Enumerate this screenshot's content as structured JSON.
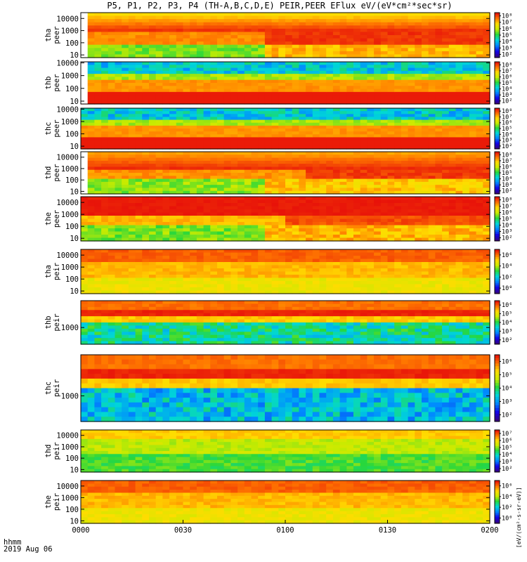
{
  "title": "P5, P1, P2, P3, P4 (TH-A,B,C,D,E) PEIR,PEER EFlux eV/(eV*cm²*sec*sr)",
  "footer": {
    "time_label": "hhmm",
    "date_label": "2019 Aug 06"
  },
  "colorbar_unit": "[eV/(cm²-s-sr-eV)]",
  "chart_data": {
    "type": "heatmap",
    "x": {
      "ticks": [
        "0000",
        "0030",
        "0100",
        "0130",
        "0200"
      ],
      "range": [
        0,
        120
      ],
      "unit": "minutes"
    },
    "panels": [
      {
        "id": "tha-peer",
        "label": [
          "tha",
          "peer"
        ],
        "yscale": "log",
        "ylim": [
          6,
          30000
        ],
        "yticks": [
          "10",
          "100",
          "1000",
          "10000"
        ],
        "yvals": [
          10,
          100,
          1000,
          10000
        ],
        "cb": [
          "10²",
          "10³",
          "10⁴",
          "10⁵",
          "10⁶",
          "10⁷",
          "10⁸"
        ],
        "cbmin": 2,
        "cbmax": 8,
        "pattern": "sheath-e",
        "gap_end": 2
      },
      {
        "id": "thb-peer",
        "label": [
          "thb",
          "peer"
        ],
        "yscale": "log",
        "ylim": [
          6,
          12000
        ],
        "yticks": [
          "10",
          "100",
          "1000",
          "10000"
        ],
        "yvals": [
          10,
          100,
          1000,
          10000
        ],
        "cb": [
          "10²",
          "10³",
          "10⁴",
          "10⁵",
          "10⁶",
          "10⁷",
          "10⁸"
        ],
        "cbmin": 2,
        "cbmax": 8,
        "pattern": "wind-e",
        "gap_end": 2
      },
      {
        "id": "thc-peer",
        "label": [
          "thc",
          "peer"
        ],
        "yscale": "log",
        "ylim": [
          6,
          12000
        ],
        "yticks": [
          "10",
          "100",
          "1000",
          "10000"
        ],
        "yvals": [
          10,
          100,
          1000,
          10000
        ],
        "cb": [
          "10²",
          "10³",
          "10⁴",
          "10⁵",
          "10⁶",
          "10⁷",
          "10⁸"
        ],
        "cbmin": 2,
        "cbmax": 8,
        "pattern": "wind-e",
        "gap_end": 0
      },
      {
        "id": "thd-peer",
        "label": [
          "thd",
          "peer"
        ],
        "yscale": "log",
        "ylim": [
          6,
          30000
        ],
        "yticks": [
          "10",
          "100",
          "1000",
          "10000"
        ],
        "yvals": [
          10,
          100,
          1000,
          10000
        ],
        "cb": [
          "10²",
          "10³",
          "10⁴",
          "10⁵",
          "10⁶",
          "10⁷",
          "10⁸"
        ],
        "cbmin": 2,
        "cbmax": 8,
        "pattern": "sheath-e2",
        "gap_end": 2
      },
      {
        "id": "the-peer",
        "label": [
          "the",
          "peer"
        ],
        "yscale": "log",
        "ylim": [
          6,
          30000
        ],
        "yticks": [
          "10",
          "100",
          "1000",
          "10000"
        ],
        "yvals": [
          10,
          100,
          1000,
          10000
        ],
        "cb": [
          "10²",
          "10³",
          "10⁴",
          "10⁵",
          "10⁶",
          "10⁷",
          "10⁸"
        ],
        "cbmin": 2,
        "cbmax": 8,
        "pattern": "sheath-e3",
        "gap_end": 0
      },
      {
        "id": "tha-peir",
        "label": [
          "tha",
          "peir"
        ],
        "yscale": "log",
        "ylim": [
          6,
          30000
        ],
        "yticks": [
          "10",
          "100",
          "1000",
          "10000"
        ],
        "yvals": [
          10,
          100,
          1000,
          10000
        ],
        "cb": [
          "10⁰",
          "10²",
          "10⁴",
          "10⁶"
        ],
        "cbmin": 0,
        "cbmax": 7,
        "pattern": "sheath-i",
        "gap_end": 0
      },
      {
        "id": "thb-peir",
        "label": [
          "thb",
          "peir"
        ],
        "yscale": "log",
        "ylim": [
          120,
          30000
        ],
        "yticks": [
          "1000"
        ],
        "yvals": [
          1000
        ],
        "cb": [
          "10²",
          "10³",
          "10⁴",
          "10⁵",
          "10⁶"
        ],
        "cbmin": 1.5,
        "cbmax": 6.8,
        "pattern": "wind-i",
        "gap_end": 0
      },
      {
        "id": "thc-peir",
        "label": [
          "thc",
          "peir"
        ],
        "yscale": "log",
        "ylim": [
          120,
          30000
        ],
        "yticks": [
          "1000"
        ],
        "yvals": [
          1000
        ],
        "cb": [
          "10²",
          "10³",
          "10⁴",
          "10⁵",
          "10⁶"
        ],
        "cbmin": 1.5,
        "cbmax": 6.8,
        "pattern": "wind-i2",
        "gap_end": 0
      },
      {
        "id": "thd-peir",
        "label": [
          "thd",
          "peir"
        ],
        "yscale": "log",
        "ylim": [
          6,
          30000
        ],
        "yticks": [
          "10",
          "100",
          "1000",
          "10000"
        ],
        "yvals": [
          10,
          100,
          1000,
          10000
        ],
        "cb": [
          "10²",
          "10³",
          "10⁴",
          "10⁵",
          "10⁶",
          "10⁷"
        ],
        "cbmin": 1.5,
        "cbmax": 7.5,
        "pattern": "sheath-i2",
        "gap_end": 0
      },
      {
        "id": "the-peir",
        "label": [
          "the",
          "peir"
        ],
        "yscale": "log",
        "ylim": [
          6,
          30000
        ],
        "yticks": [
          "10",
          "100",
          "1000",
          "10000"
        ],
        "yvals": [
          10,
          100,
          1000,
          10000
        ],
        "cb": [
          "10⁰",
          "10²",
          "10⁴",
          "10⁶"
        ],
        "cbmin": 0,
        "cbmax": 7,
        "pattern": "sheath-i3",
        "gap_end": 0
      }
    ]
  }
}
